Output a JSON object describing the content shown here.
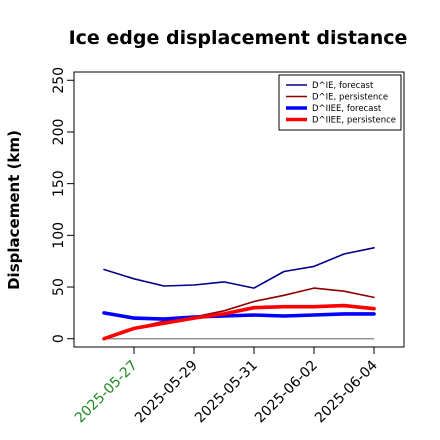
{
  "chart_data": {
    "type": "line",
    "title": "Ice edge displacement distance",
    "ylabel": "Displacement (km)",
    "xlabel": "",
    "ylim": [
      -8,
      258
    ],
    "yticks": [
      0,
      50,
      100,
      150,
      200,
      250
    ],
    "ytick_labels": [
      "0",
      "50",
      "100",
      "150",
      "200",
      "250"
    ],
    "xlim": [
      "2025-05-25",
      "2025-06-05"
    ],
    "xticks": [
      "2025-05-27",
      "2025-05-29",
      "2025-05-31",
      "2025-06-02",
      "2025-06-04"
    ],
    "xtick_labels": [
      "2025-05-27",
      "2025-05-29",
      "2025-05-31",
      "2025-06-02",
      "2025-06-04"
    ],
    "xtick_colors": [
      "#228b22",
      "#000000",
      "#000000",
      "#000000",
      "#000000"
    ],
    "x": [
      "2025-05-26",
      "2025-05-27",
      "2025-05-28",
      "2025-05-29",
      "2025-05-30",
      "2025-05-31",
      "2025-06-01",
      "2025-06-02",
      "2025-06-03",
      "2025-06-04"
    ],
    "baseline": {
      "y": 0,
      "x_from": "2025-05-26",
      "x_to": "2025-06-04",
      "color": "#808080"
    },
    "legend_position": "top-right",
    "series": [
      {
        "name": "D^IE, forecast",
        "values": [
          67,
          58,
          51,
          52,
          55,
          49,
          65,
          70,
          82,
          88
        ],
        "color": "#00008b",
        "width": 1.6
      },
      {
        "name": "D^IE, persistence",
        "values": [
          0,
          10,
          17,
          21,
          27,
          36,
          42,
          49,
          46,
          40
        ],
        "color": "#8b0000",
        "width": 1.6
      },
      {
        "name": "D^IIEE, forecast",
        "values": [
          25,
          20,
          19,
          21,
          22,
          23,
          22,
          23,
          24,
          24
        ],
        "color": "#0000ff",
        "width": 3.6
      },
      {
        "name": "D^IIEE, persistence",
        "values": [
          0,
          10,
          15,
          20,
          24,
          30,
          31,
          31,
          32,
          29
        ],
        "color": "#ff0000",
        "width": 3.6
      }
    ]
  }
}
